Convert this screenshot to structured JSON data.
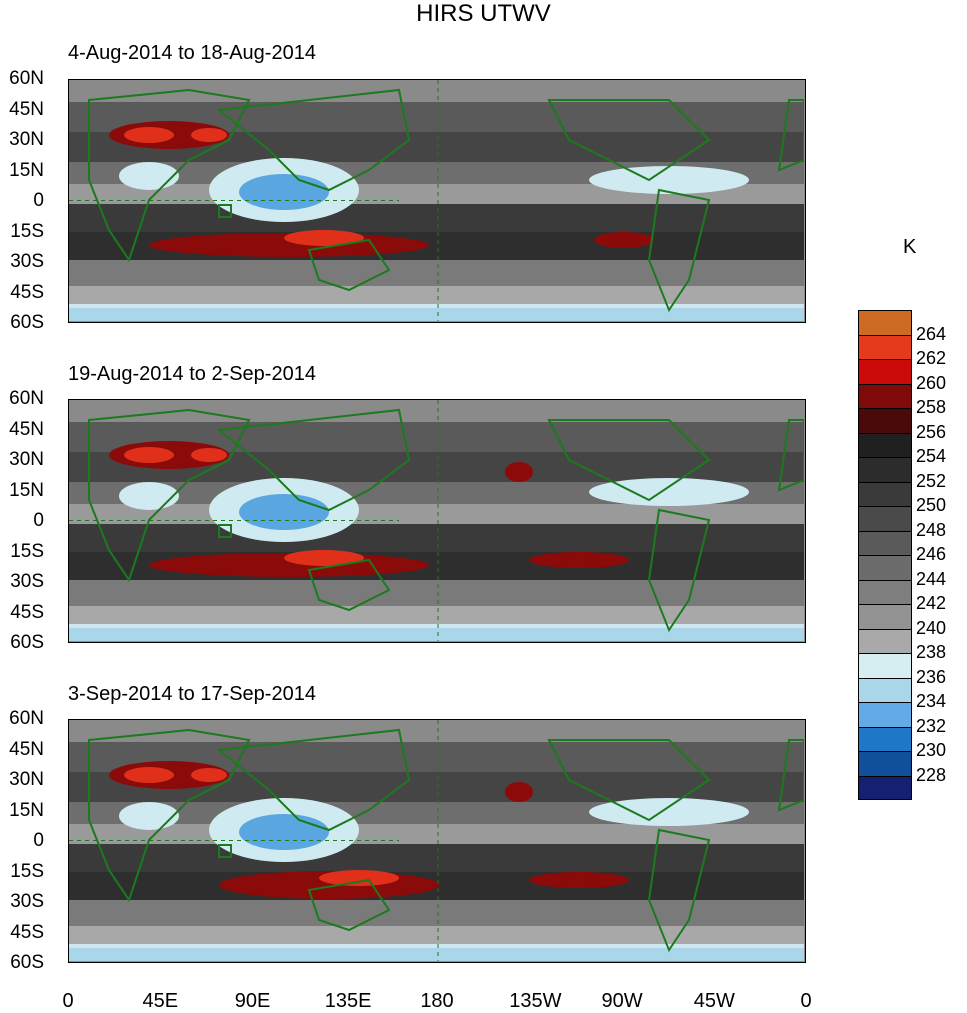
{
  "title": "HIRS UTWV",
  "unit": "K",
  "panels": [
    {
      "label": "4-Aug-2014 to 18-Aug-2014"
    },
    {
      "label": "19-Aug-2014 to 2-Sep-2014"
    },
    {
      "label": "3-Sep-2014 to 17-Sep-2014"
    }
  ],
  "lat_ticks": [
    "60N",
    "45N",
    "30N",
    "15N",
    "0",
    "15S",
    "30S",
    "45S",
    "60S"
  ],
  "lon_ticks": [
    "0",
    "45E",
    "90E",
    "135E",
    "180",
    "135W",
    "90W",
    "45W",
    "0"
  ],
  "colorbar": {
    "levels": [
      "264",
      "262",
      "260",
      "258",
      "256",
      "254",
      "252",
      "250",
      "248",
      "246",
      "244",
      "242",
      "240",
      "238",
      "236",
      "234",
      "232",
      "230",
      "228"
    ],
    "colors": [
      "#cd6a24",
      "#e63a1c",
      "#cc0a0a",
      "#7e0a0a",
      "#4a0a0a",
      "#202020",
      "#2c2c2c",
      "#3a3a3a",
      "#4a4a4a",
      "#5a5a5a",
      "#6c6c6c",
      "#7e7e7e",
      "#939393",
      "#a9a9a9",
      "#d4eef2",
      "#a9d7e9",
      "#62abe6",
      "#1f78c7",
      "#10509a",
      "#162072"
    ]
  },
  "map_colors": {
    "land": "#1c7a1c",
    "dark": "#2a2a2a",
    "light": "#cfeaf0",
    "blue": "#5aa6e0",
    "red": "#8b0a0a",
    "hot": "#e0301a"
  }
}
